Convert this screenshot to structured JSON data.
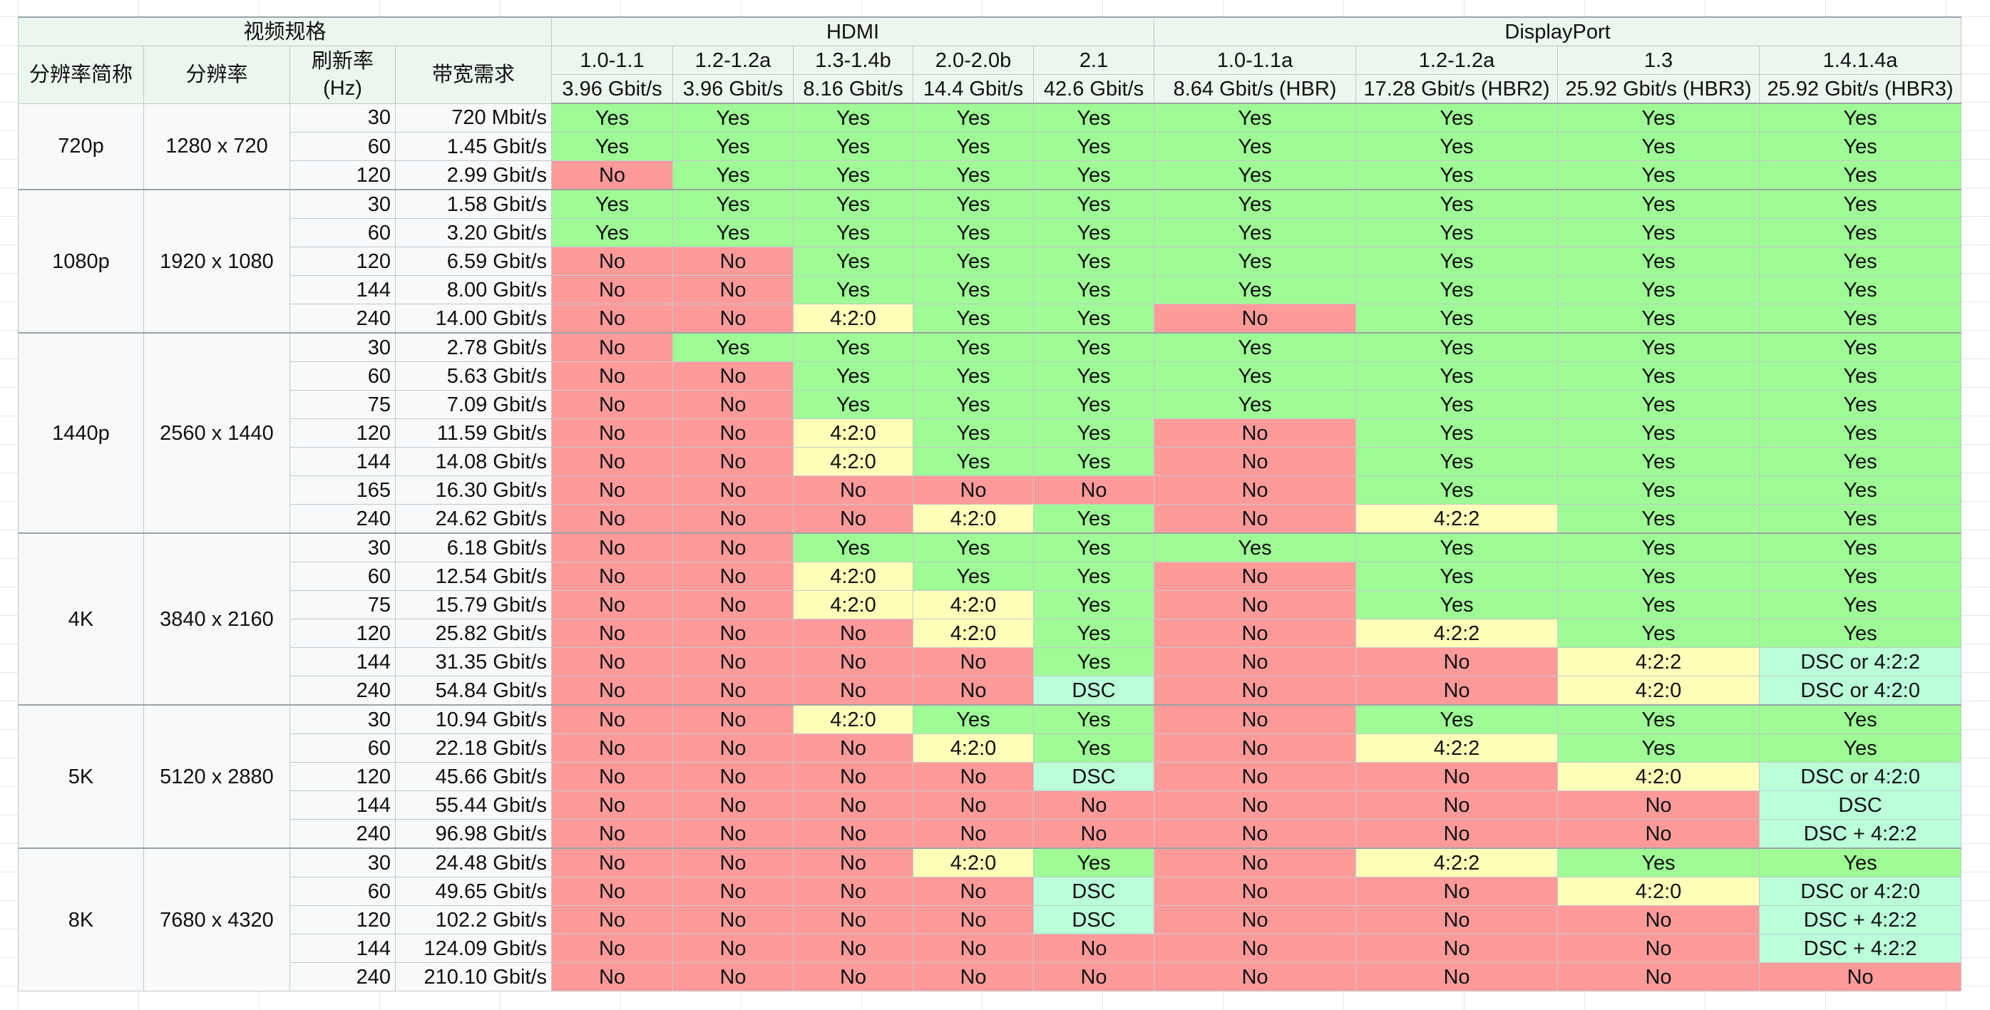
{
  "header": {
    "video_spec": "视频规格",
    "hdmi": "HDMI",
    "displayport": "DisplayPort",
    "col_name": "分辨率简称",
    "col_resolution": "分辨率",
    "col_refresh_1": "刷新率",
    "col_refresh_2": "(Hz)",
    "col_bandwidth": "带宽需求",
    "interfaces": [
      {
        "version": "1.0-1.1",
        "bandwidth": "3.96 Gbit/s"
      },
      {
        "version": "1.2-1.2a",
        "bandwidth": "3.96 Gbit/s"
      },
      {
        "version": "1.3-1.4b",
        "bandwidth": "8.16 Gbit/s"
      },
      {
        "version": "2.0-2.0b",
        "bandwidth": "14.4 Gbit/s"
      },
      {
        "version": "2.1",
        "bandwidth": "42.6 Gbit/s"
      },
      {
        "version": "1.0-1.1a",
        "bandwidth": "8.64 Gbit/s (HBR)"
      },
      {
        "version": "1.2-1.2a",
        "bandwidth": "17.28 Gbit/s (HBR2)"
      },
      {
        "version": "1.3",
        "bandwidth": "25.92 Gbit/s (HBR3)"
      },
      {
        "version": "1.4.1.4a",
        "bandwidth": "25.92 Gbit/s (HBR3)"
      }
    ]
  },
  "colors": {
    "yes": "#9efb95",
    "no": "#fe9b9a",
    "chroma": "#ffffb9",
    "dsc": "#baffda",
    "header": "#eaf6ee"
  },
  "groups": [
    {
      "name": "720p",
      "resolution": "1280 x 720",
      "rows": [
        {
          "hz": "30",
          "bw": "720 Mbit/s",
          "cells": [
            "Yes",
            "Yes",
            "Yes",
            "Yes",
            "Yes",
            "Yes",
            "Yes",
            "Yes",
            "Yes"
          ]
        },
        {
          "hz": "60",
          "bw": "1.45 Gbit/s",
          "cells": [
            "Yes",
            "Yes",
            "Yes",
            "Yes",
            "Yes",
            "Yes",
            "Yes",
            "Yes",
            "Yes"
          ]
        },
        {
          "hz": "120",
          "bw": "2.99 Gbit/s",
          "cells": [
            "No",
            "Yes",
            "Yes",
            "Yes",
            "Yes",
            "Yes",
            "Yes",
            "Yes",
            "Yes"
          ]
        }
      ]
    },
    {
      "name": "1080p",
      "resolution": "1920 x 1080",
      "rows": [
        {
          "hz": "30",
          "bw": "1.58 Gbit/s",
          "cells": [
            "Yes",
            "Yes",
            "Yes",
            "Yes",
            "Yes",
            "Yes",
            "Yes",
            "Yes",
            "Yes"
          ]
        },
        {
          "hz": "60",
          "bw": "3.20 Gbit/s",
          "cells": [
            "Yes",
            "Yes",
            "Yes",
            "Yes",
            "Yes",
            "Yes",
            "Yes",
            "Yes",
            "Yes"
          ]
        },
        {
          "hz": "120",
          "bw": "6.59 Gbit/s",
          "cells": [
            "No",
            "No",
            "Yes",
            "Yes",
            "Yes",
            "Yes",
            "Yes",
            "Yes",
            "Yes"
          ]
        },
        {
          "hz": "144",
          "bw": "8.00 Gbit/s",
          "cells": [
            "No",
            "No",
            "Yes",
            "Yes",
            "Yes",
            "Yes",
            "Yes",
            "Yes",
            "Yes"
          ]
        },
        {
          "hz": "240",
          "bw": "14.00 Gbit/s",
          "cells": [
            "No",
            "No",
            "4:2:0",
            "Yes",
            "Yes",
            "No",
            "Yes",
            "Yes",
            "Yes"
          ]
        }
      ]
    },
    {
      "name": "1440p",
      "resolution": "2560 x 1440",
      "rows": [
        {
          "hz": "30",
          "bw": "2.78 Gbit/s",
          "cells": [
            "No",
            "Yes",
            "Yes",
            "Yes",
            "Yes",
            "Yes",
            "Yes",
            "Yes",
            "Yes"
          ]
        },
        {
          "hz": "60",
          "bw": "5.63 Gbit/s",
          "cells": [
            "No",
            "No",
            "Yes",
            "Yes",
            "Yes",
            "Yes",
            "Yes",
            "Yes",
            "Yes"
          ]
        },
        {
          "hz": "75",
          "bw": "7.09 Gbit/s",
          "cells": [
            "No",
            "No",
            "Yes",
            "Yes",
            "Yes",
            "Yes",
            "Yes",
            "Yes",
            "Yes"
          ]
        },
        {
          "hz": "120",
          "bw": "11.59 Gbit/s",
          "cells": [
            "No",
            "No",
            "4:2:0",
            "Yes",
            "Yes",
            "No",
            "Yes",
            "Yes",
            "Yes"
          ]
        },
        {
          "hz": "144",
          "bw": "14.08 Gbit/s",
          "cells": [
            "No",
            "No",
            "4:2:0",
            "Yes",
            "Yes",
            "No",
            "Yes",
            "Yes",
            "Yes"
          ]
        },
        {
          "hz": "165",
          "bw": "16.30 Gbit/s",
          "cells": [
            "No",
            "No",
            "No",
            "No",
            "No",
            "No",
            "Yes",
            "Yes",
            "Yes"
          ]
        },
        {
          "hz": "240",
          "bw": "24.62 Gbit/s",
          "cells": [
            "No",
            "No",
            "No",
            "4:2:0",
            "Yes",
            "No",
            "4:2:2",
            "Yes",
            "Yes"
          ]
        }
      ]
    },
    {
      "name": "4K",
      "resolution": "3840 x 2160",
      "rows": [
        {
          "hz": "30",
          "bw": "6.18 Gbit/s",
          "cells": [
            "No",
            "No",
            "Yes",
            "Yes",
            "Yes",
            "Yes",
            "Yes",
            "Yes",
            "Yes"
          ]
        },
        {
          "hz": "60",
          "bw": "12.54 Gbit/s",
          "cells": [
            "No",
            "No",
            "4:2:0",
            "Yes",
            "Yes",
            "No",
            "Yes",
            "Yes",
            "Yes"
          ]
        },
        {
          "hz": "75",
          "bw": "15.79 Gbit/s",
          "cells": [
            "No",
            "No",
            "4:2:0",
            "4:2:0",
            "Yes",
            "No",
            "Yes",
            "Yes",
            "Yes"
          ]
        },
        {
          "hz": "120",
          "bw": "25.82 Gbit/s",
          "cells": [
            "No",
            "No",
            "No",
            "4:2:0",
            "Yes",
            "No",
            "4:2:2",
            "Yes",
            "Yes"
          ]
        },
        {
          "hz": "144",
          "bw": "31.35 Gbit/s",
          "cells": [
            "No",
            "No",
            "No",
            "No",
            "Yes",
            "No",
            "No",
            "4:2:2",
            "DSC or 4:2:2"
          ]
        },
        {
          "hz": "240",
          "bw": "54.84 Gbit/s",
          "cells": [
            "No",
            "No",
            "No",
            "No",
            "DSC",
            "No",
            "No",
            "4:2:0",
            "DSC or 4:2:0"
          ]
        }
      ]
    },
    {
      "name": "5K",
      "resolution": "5120 x 2880",
      "rows": [
        {
          "hz": "30",
          "bw": "10.94 Gbit/s",
          "cells": [
            "No",
            "No",
            "4:2:0",
            "Yes",
            "Yes",
            "No",
            "Yes",
            "Yes",
            "Yes"
          ]
        },
        {
          "hz": "60",
          "bw": "22.18 Gbit/s",
          "cells": [
            "No",
            "No",
            "No",
            "4:2:0",
            "Yes",
            "No",
            "4:2:2",
            "Yes",
            "Yes"
          ]
        },
        {
          "hz": "120",
          "bw": "45.66 Gbit/s",
          "cells": [
            "No",
            "No",
            "No",
            "No",
            "DSC",
            "No",
            "No",
            "4:2:0",
            "DSC or 4:2:0"
          ]
        },
        {
          "hz": "144",
          "bw": "55.44 Gbit/s",
          "cells": [
            "No",
            "No",
            "No",
            "No",
            "No",
            "No",
            "No",
            "No",
            "DSC"
          ]
        },
        {
          "hz": "240",
          "bw": "96.98 Gbit/s",
          "cells": [
            "No",
            "No",
            "No",
            "No",
            "No",
            "No",
            "No",
            "No",
            "DSC + 4:2:2"
          ]
        }
      ]
    },
    {
      "name": "8K",
      "resolution": "7680 x 4320",
      "rows": [
        {
          "hz": "30",
          "bw": "24.48 Gbit/s",
          "cells": [
            "No",
            "No",
            "No",
            "4:2:0",
            "Yes",
            "No",
            "4:2:2",
            "Yes",
            "Yes"
          ]
        },
        {
          "hz": "60",
          "bw": "49.65 Gbit/s",
          "cells": [
            "No",
            "No",
            "No",
            "No",
            "DSC",
            "No",
            "No",
            "4:2:0",
            "DSC or 4:2:0"
          ]
        },
        {
          "hz": "120",
          "bw": "102.2 Gbit/s",
          "cells": [
            "No",
            "No",
            "No",
            "No",
            "DSC",
            "No",
            "No",
            "No",
            "DSC + 4:2:2"
          ]
        },
        {
          "hz": "144",
          "bw": "124.09 Gbit/s",
          "cells": [
            "No",
            "No",
            "No",
            "No",
            "No",
            "No",
            "No",
            "No",
            "DSC + 4:2:2"
          ]
        },
        {
          "hz": "240",
          "bw": "210.10 Gbit/s",
          "cells": [
            "No",
            "No",
            "No",
            "No",
            "No",
            "No",
            "No",
            "No",
            "No"
          ]
        }
      ]
    }
  ]
}
